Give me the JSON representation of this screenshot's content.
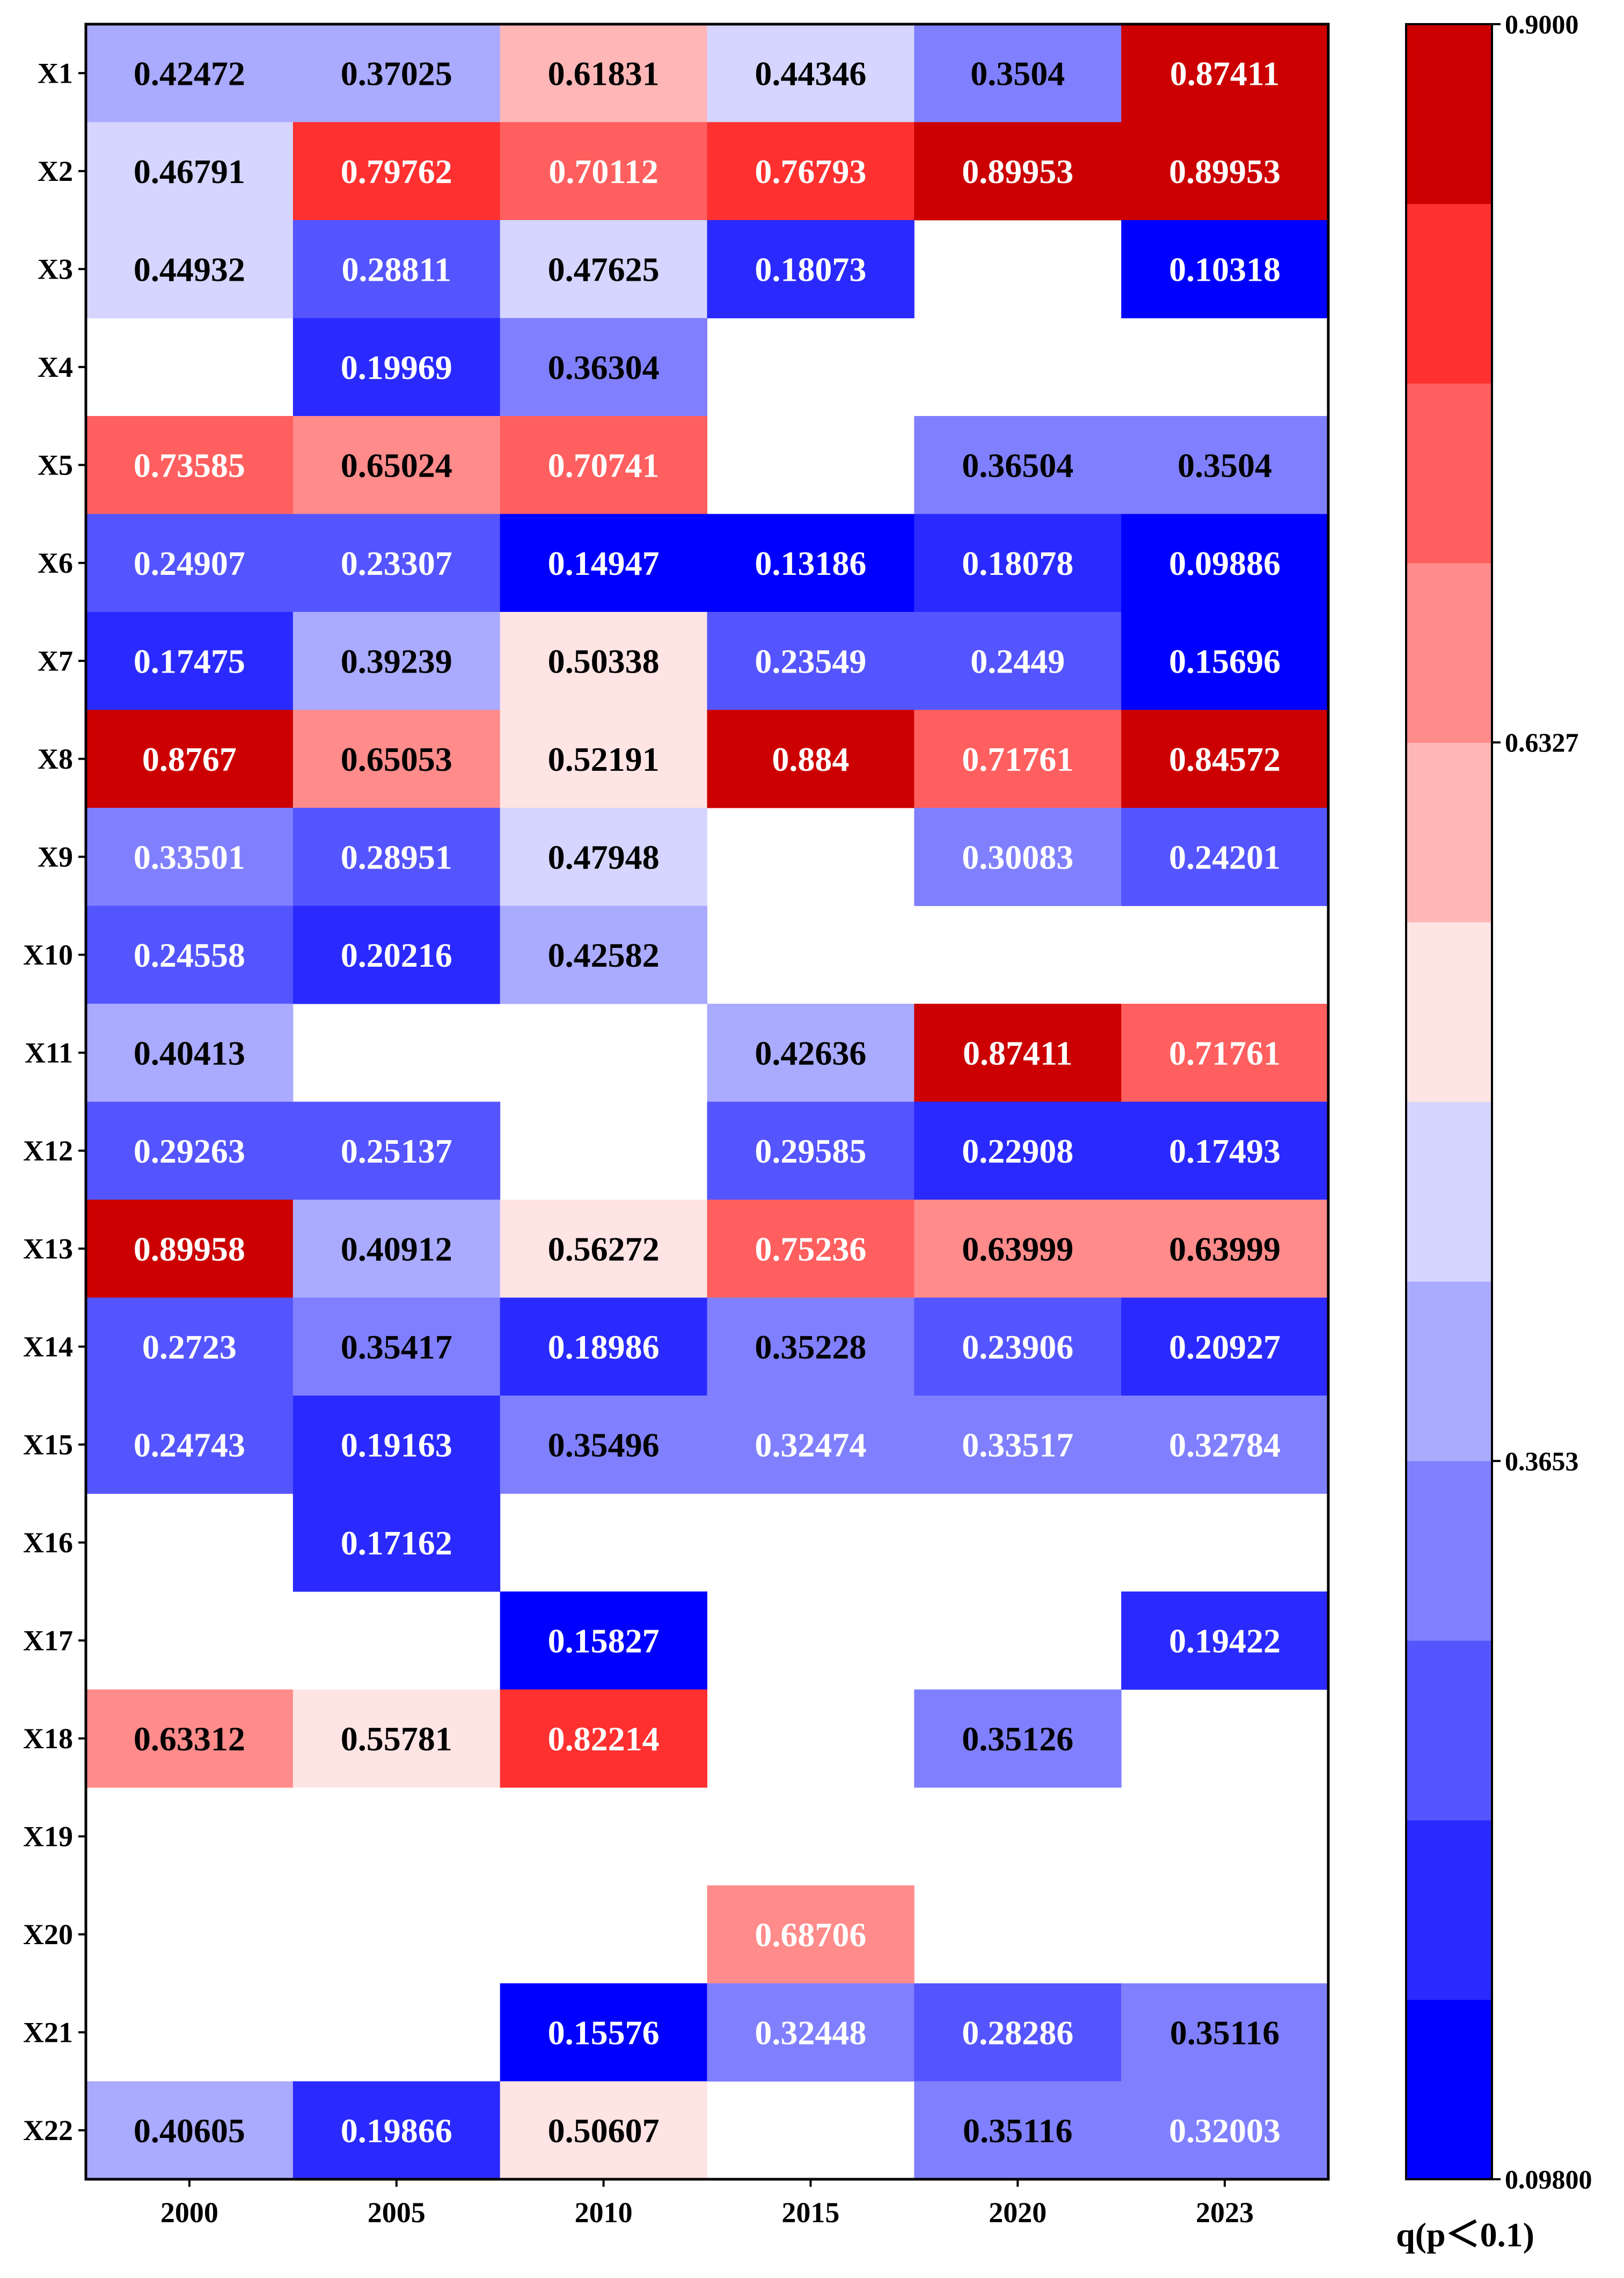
{
  "chart_data": {
    "type": "heatmap",
    "title": "",
    "xlabel": "",
    "ylabel": "",
    "columns": [
      "2000",
      "2005",
      "2010",
      "2015",
      "2020",
      "2023"
    ],
    "rows": [
      "X1",
      "X2",
      "X3",
      "X4",
      "X5",
      "X6",
      "X7",
      "X8",
      "X9",
      "X10",
      "X11",
      "X12",
      "X13",
      "X14",
      "X15",
      "X16",
      "X17",
      "X18",
      "X19",
      "X20",
      "X21",
      "X22"
    ],
    "values": [
      [
        "0.42472",
        "0.37025",
        "0.61831",
        "0.44346",
        "0.3504",
        "0.87411"
      ],
      [
        "0.46791",
        "0.79762",
        "0.70112",
        "0.76793",
        "0.89953",
        "0.89953"
      ],
      [
        "0.44932",
        "0.28811",
        "0.47625",
        "0.18073",
        null,
        "0.10318"
      ],
      [
        null,
        "0.19969",
        "0.36304",
        null,
        null,
        null
      ],
      [
        "0.73585",
        "0.65024",
        "0.70741",
        null,
        "0.36504",
        "0.3504"
      ],
      [
        "0.24907",
        "0.23307",
        "0.14947",
        "0.13186",
        "0.18078",
        "0.09886"
      ],
      [
        "0.17475",
        "0.39239",
        "0.50338",
        "0.23549",
        "0.2449",
        "0.15696"
      ],
      [
        "0.8767",
        "0.65053",
        "0.52191",
        "0.884",
        "0.71761",
        "0.84572"
      ],
      [
        "0.33501",
        "0.28951",
        "0.47948",
        null,
        "0.30083",
        "0.24201"
      ],
      [
        "0.24558",
        "0.20216",
        "0.42582",
        null,
        null,
        null
      ],
      [
        "0.40413",
        null,
        null,
        "0.42636",
        "0.87411",
        "0.71761"
      ],
      [
        "0.29263",
        "0.25137",
        null,
        "0.29585",
        "0.22908",
        "0.17493"
      ],
      [
        "0.89958",
        "0.40912",
        "0.56272",
        "0.75236",
        "0.63999",
        "0.63999"
      ],
      [
        "0.2723",
        "0.35417",
        "0.18986",
        "0.35228",
        "0.23906",
        "0.20927"
      ],
      [
        "0.24743",
        "0.19163",
        "0.35496",
        "0.32474",
        "0.33517",
        "0.32784"
      ],
      [
        null,
        "0.17162",
        null,
        null,
        null,
        null
      ],
      [
        null,
        null,
        "0.15827",
        null,
        null,
        "0.19422"
      ],
      [
        "0.63312",
        "0.55781",
        "0.82214",
        null,
        "0.35126",
        null
      ],
      [
        null,
        null,
        null,
        null,
        null,
        null
      ],
      [
        null,
        null,
        null,
        "0.68706",
        null,
        null
      ],
      [
        null,
        null,
        "0.15576",
        "0.32448",
        "0.28286",
        "0.35116"
      ],
      [
        "0.40605",
        "0.19866",
        "0.50607",
        null,
        "0.35116",
        "0.32003"
      ]
    ],
    "colorbar": {
      "min": 0.098,
      "max": 0.9,
      "ticks": [
        {
          "value": 0.9,
          "label": "0.9000"
        },
        {
          "value": 0.6327,
          "label": "0.6327"
        },
        {
          "value": 0.3653,
          "label": "0.3653"
        },
        {
          "value": 0.098,
          "label": "0.09800"
        }
      ],
      "title": "q(p＜0.1)",
      "colors": [
        "#0000ff",
        "#2a2aff",
        "#5555ff",
        "#8080ff",
        "#aaaaff",
        "#d5d5ff",
        "#ffe4e4",
        "#ffb6b6",
        "#ff8b8b",
        "#ff5f5f",
        "#ff3030",
        "#cc0000"
      ]
    }
  }
}
